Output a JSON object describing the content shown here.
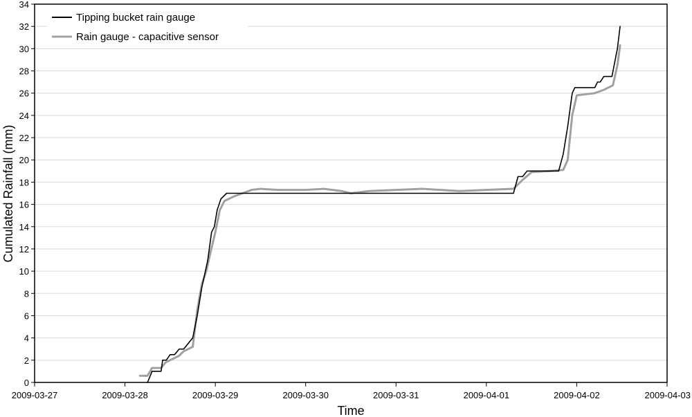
{
  "chart_data": {
    "type": "line",
    "title": "",
    "xlabel": "Time",
    "ylabel": "Cumulated Rainfall (mm)",
    "x_ticks": [
      "2009-03-27",
      "2009-03-28",
      "2009-03-29",
      "2009-03-30",
      "2009-03-31",
      "2009-04-01",
      "2009-04-02",
      "2009-04-03"
    ],
    "xlim": [
      "2009-03-27",
      "2009-04-03"
    ],
    "ylim": [
      0,
      34
    ],
    "y_ticks": [
      0,
      2,
      4,
      6,
      8,
      10,
      12,
      14,
      16,
      18,
      20,
      22,
      24,
      26,
      28,
      30,
      32,
      34
    ],
    "grid": "horizontal",
    "legend": "top-left",
    "series": [
      {
        "name": "Tipping bucket rain gauge",
        "color": "#000000",
        "points": [
          [
            "2009-03-28 06:00",
            0
          ],
          [
            "2009-03-28 07:12",
            1.0
          ],
          [
            "2009-03-28 09:36",
            1.0
          ],
          [
            "2009-03-28 10:00",
            2.0
          ],
          [
            "2009-03-28 11:00",
            2.0
          ],
          [
            "2009-03-28 12:00",
            2.5
          ],
          [
            "2009-03-28 13:12",
            2.5
          ],
          [
            "2009-03-28 14:24",
            3.0
          ],
          [
            "2009-03-28 15:36",
            3.0
          ],
          [
            "2009-03-28 16:48",
            3.5
          ],
          [
            "2009-03-28 18:00",
            4.0
          ],
          [
            "2009-03-28 19:12",
            6.0
          ],
          [
            "2009-03-28 20:24",
            8.5
          ],
          [
            "2009-03-28 22:00",
            11.0
          ],
          [
            "2009-03-28 23:00",
            13.5
          ],
          [
            "2009-03-28 23:45",
            14.0
          ],
          [
            "2009-03-29 00:30",
            15.5
          ],
          [
            "2009-03-29 01:30",
            16.5
          ],
          [
            "2009-03-29 03:00",
            17.0
          ],
          [
            "2009-03-29 06:00",
            17.0
          ],
          [
            "2009-04-01 00:00",
            17.0
          ],
          [
            "2009-04-01 07:12",
            17.0
          ],
          [
            "2009-04-01 08:24",
            18.5
          ],
          [
            "2009-04-01 09:36",
            18.5
          ],
          [
            "2009-04-01 10:48",
            19.0
          ],
          [
            "2009-04-01 12:00",
            19.0
          ],
          [
            "2009-04-01 19:12",
            19.0
          ],
          [
            "2009-04-01 20:24",
            20.5
          ],
          [
            "2009-04-01 21:36",
            23.0
          ],
          [
            "2009-04-01 22:48",
            26.0
          ],
          [
            "2009-04-01 23:30",
            26.5
          ],
          [
            "2009-04-02 04:48",
            26.5
          ],
          [
            "2009-04-02 05:31",
            27.0
          ],
          [
            "2009-04-02 06:14",
            27.0
          ],
          [
            "2009-04-02 07:12",
            27.5
          ],
          [
            "2009-04-02 09:21",
            27.5
          ],
          [
            "2009-04-02 10:48",
            30.0
          ],
          [
            "2009-04-02 11:31",
            32.0
          ]
        ]
      },
      {
        "name": "Rain gauge - capacitive sensor",
        "color": "#a0a0a0",
        "points": [
          [
            "2009-03-28 04:00",
            0.6
          ],
          [
            "2009-03-28 06:00",
            0.6
          ],
          [
            "2009-03-28 07:12",
            1.3
          ],
          [
            "2009-03-28 09:36",
            1.3
          ],
          [
            "2009-03-28 10:48",
            1.8
          ],
          [
            "2009-03-28 12:00",
            2.0
          ],
          [
            "2009-03-28 14:24",
            2.4
          ],
          [
            "2009-03-28 15:36",
            2.8
          ],
          [
            "2009-03-28 18:00",
            3.2
          ],
          [
            "2009-03-28 19:12",
            6.5
          ],
          [
            "2009-03-28 20:24",
            8.8
          ],
          [
            "2009-03-28 21:36",
            10.0
          ],
          [
            "2009-03-28 22:48",
            11.8
          ],
          [
            "2009-03-29 00:00",
            13.5
          ],
          [
            "2009-03-29 01:12",
            15.5
          ],
          [
            "2009-03-29 02:24",
            16.3
          ],
          [
            "2009-03-29 04:48",
            16.7
          ],
          [
            "2009-03-29 07:12",
            17.0
          ],
          [
            "2009-03-29 09:36",
            17.3
          ],
          [
            "2009-03-29 12:00",
            17.4
          ],
          [
            "2009-03-29 16:48",
            17.3
          ],
          [
            "2009-03-30 00:00",
            17.3
          ],
          [
            "2009-03-30 04:48",
            17.4
          ],
          [
            "2009-03-30 09:36",
            17.2
          ],
          [
            "2009-03-30 12:00",
            17.0
          ],
          [
            "2009-03-30 16:48",
            17.2
          ],
          [
            "2009-03-31 00:00",
            17.3
          ],
          [
            "2009-03-31 07:12",
            17.4
          ],
          [
            "2009-03-31 12:00",
            17.3
          ],
          [
            "2009-03-31 16:48",
            17.2
          ],
          [
            "2009-04-01 00:00",
            17.3
          ],
          [
            "2009-04-01 07:12",
            17.4
          ],
          [
            "2009-04-01 09:36",
            18.2
          ],
          [
            "2009-04-01 12:00",
            18.9
          ],
          [
            "2009-04-01 16:48",
            19.0
          ],
          [
            "2009-04-01 20:24",
            19.1
          ],
          [
            "2009-04-01 21:36",
            20.0
          ],
          [
            "2009-04-01 22:48",
            24.0
          ],
          [
            "2009-04-02 00:00",
            25.8
          ],
          [
            "2009-04-02 02:24",
            25.9
          ],
          [
            "2009-04-02 04:48",
            26.0
          ],
          [
            "2009-04-02 07:12",
            26.3
          ],
          [
            "2009-04-02 09:36",
            26.7
          ],
          [
            "2009-04-02 10:48",
            28.5
          ],
          [
            "2009-04-02 11:31",
            30.3
          ]
        ]
      }
    ]
  }
}
